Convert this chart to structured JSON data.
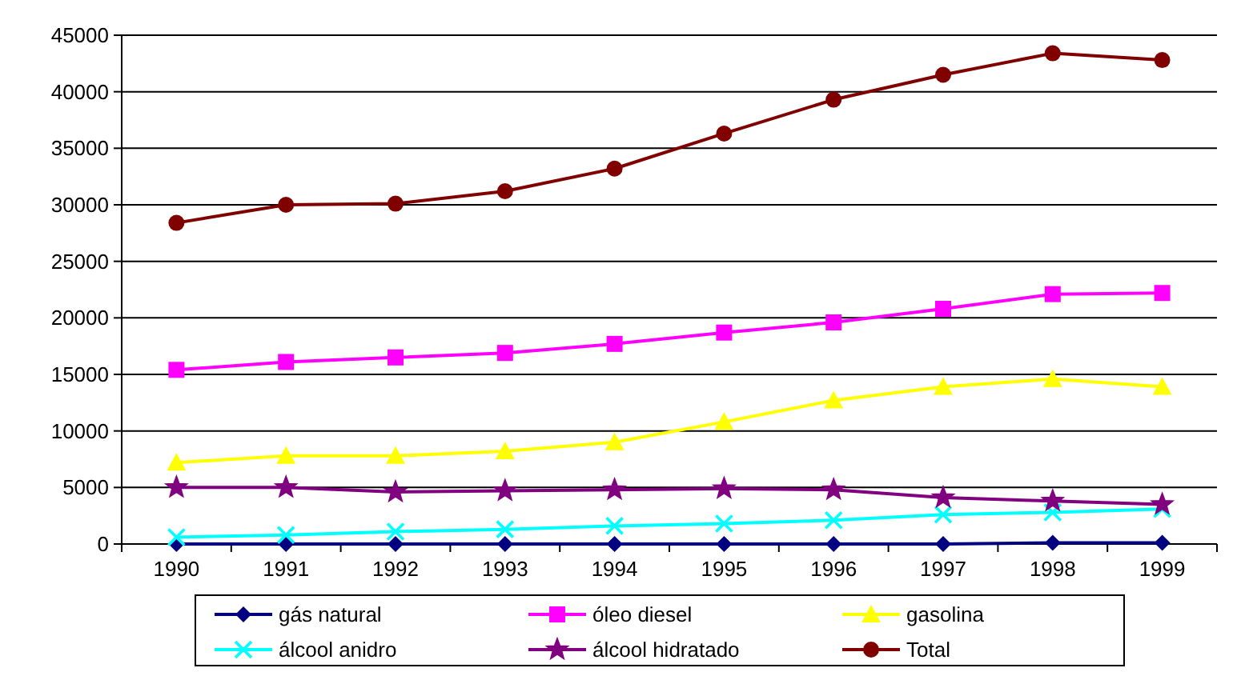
{
  "chart_data": {
    "type": "line",
    "categories": [
      "1990",
      "1991",
      "1992",
      "1993",
      "1994",
      "1995",
      "1996",
      "1997",
      "1998",
      "1999"
    ],
    "series": [
      {
        "name": "gás natural",
        "color": "#000080",
        "marker": "diamond",
        "values": [
          0,
          0,
          0,
          0,
          0,
          0,
          0,
          0,
          100,
          100
        ]
      },
      {
        "name": "óleo diesel",
        "color": "#ff00ff",
        "marker": "square",
        "values": [
          15400,
          16100,
          16500,
          16900,
          17700,
          18700,
          19600,
          20800,
          22100,
          22200
        ]
      },
      {
        "name": "gasolina",
        "color": "#ffff00",
        "marker": "triangle",
        "values": [
          7200,
          7800,
          7800,
          8200,
          9000,
          10800,
          12700,
          13900,
          14600,
          13900
        ]
      },
      {
        "name": "álcool anidro",
        "color": "#00ffff",
        "marker": "cross",
        "values": [
          600,
          800,
          1100,
          1300,
          1600,
          1800,
          2100,
          2600,
          2800,
          3100
        ]
      },
      {
        "name": "álcool hidratado",
        "color": "#800080",
        "marker": "star",
        "values": [
          5000,
          5000,
          4600,
          4700,
          4800,
          4900,
          4800,
          4100,
          3800,
          3500
        ]
      },
      {
        "name": "Total",
        "color": "#800000",
        "marker": "circle",
        "values": [
          28400,
          30000,
          30100,
          31200,
          33200,
          36300,
          39300,
          41500,
          43400,
          42800
        ]
      }
    ],
    "ylim": [
      0,
      45000
    ],
    "yticks": [
      0,
      5000,
      10000,
      15000,
      20000,
      25000,
      30000,
      35000,
      40000,
      45000
    ],
    "grid": "y",
    "legend": "bottom"
  }
}
